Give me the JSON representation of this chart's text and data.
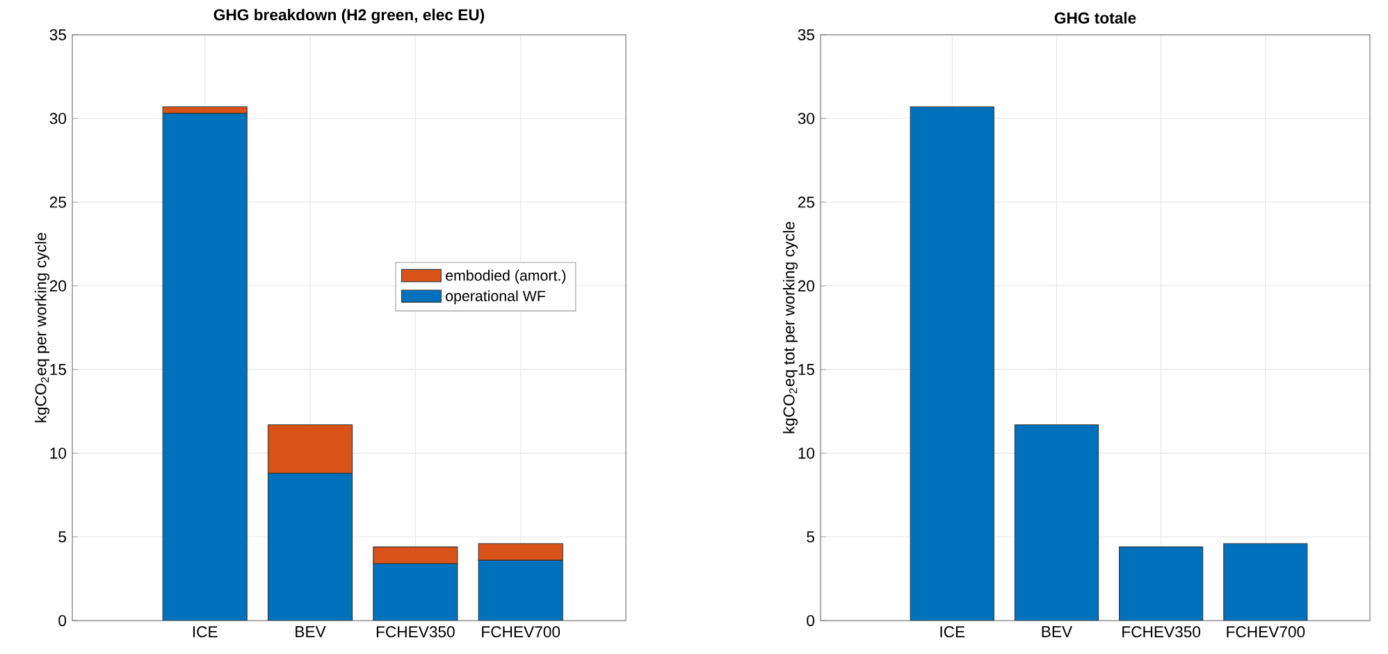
{
  "chart_data": [
    {
      "type": "bar",
      "title": "GHG breakdown (H2 green, elec EU)",
      "ylabel": "kgCO$_{2}$eq per working cycle",
      "categories": [
        "ICE",
        "BEV",
        "FCHEV350",
        "FCHEV700"
      ],
      "stacked": true,
      "series": [
        {
          "name": "operational WF",
          "color": "#0072bd",
          "values": [
            30.3,
            8.8,
            3.4,
            3.6
          ]
        },
        {
          "name": "embodied (amort.)",
          "color": "#d95319",
          "values": [
            0.4,
            2.9,
            1.0,
            1.0
          ]
        }
      ],
      "ylim": [
        0,
        35
      ],
      "yticks": [
        0,
        5,
        10,
        15,
        20,
        25,
        30,
        35
      ],
      "grid": true,
      "legend": "right"
    },
    {
      "type": "bar",
      "title": "GHG totale",
      "ylabel": "kgCO$_{2}$eq tot per working cycle",
      "categories": [
        "ICE",
        "BEV",
        "FCHEV350",
        "FCHEV700"
      ],
      "series": [
        {
          "color": "#0072bd",
          "values": [
            30.7,
            11.7,
            4.4,
            4.6
          ]
        }
      ],
      "ylim": [
        0,
        35
      ],
      "yticks": [
        0,
        5,
        10,
        15,
        20,
        25,
        30,
        35
      ],
      "grid": true
    }
  ]
}
